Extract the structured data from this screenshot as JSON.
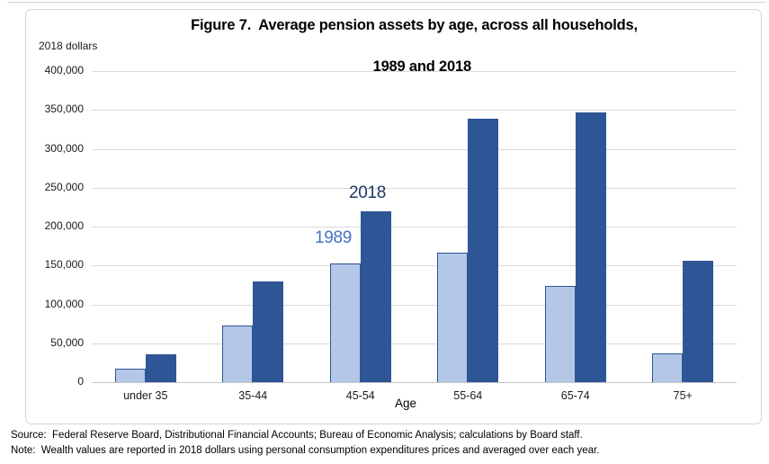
{
  "page": {
    "title_line1": "Figure 7.  Average pension assets by age, across all households,",
    "title_line2": "1989 and 2018",
    "axis_unit_label": "2018 dollars",
    "x_axis_title": "Age",
    "source_line": "Source:  Federal Reserve Board, Distributional Financial Accounts; Bureau of Economic Analysis; calculations by Board staff.",
    "note_line": "Note:  Wealth values are reported in 2018 dollars using personal consumption expenditures prices and averaged over each year."
  },
  "colors": {
    "series_1989_fill": "#b4c7e7",
    "series_1989_border": "#2e5596",
    "series_2018_fill": "#2e5596",
    "series_1989_label": "#4472c4",
    "series_2018_label": "#1f3864",
    "gridline": "#d9d9d9",
    "axis_line": "#c6c6c6",
    "frame_border": "#d5d5d5"
  },
  "chart_data": {
    "type": "bar",
    "title": "Figure 7. Average pension assets by age, across all households, 1989 and 2018",
    "categories": [
      "under 35",
      "35-44",
      "45-54",
      "55-64",
      "65-74",
      "75+"
    ],
    "series": [
      {
        "name": "1989",
        "values": [
          17000,
          73000,
          153000,
          166000,
          124000,
          37000
        ]
      },
      {
        "name": "2018",
        "values": [
          36000,
          129000,
          220000,
          339000,
          347000,
          156000
        ]
      }
    ],
    "xlabel": "Age",
    "ylabel": "2018 dollars",
    "ylim": [
      0,
      400000
    ],
    "ytick_step": 50000,
    "grid": true,
    "legend_position": "inline-data-labels"
  }
}
